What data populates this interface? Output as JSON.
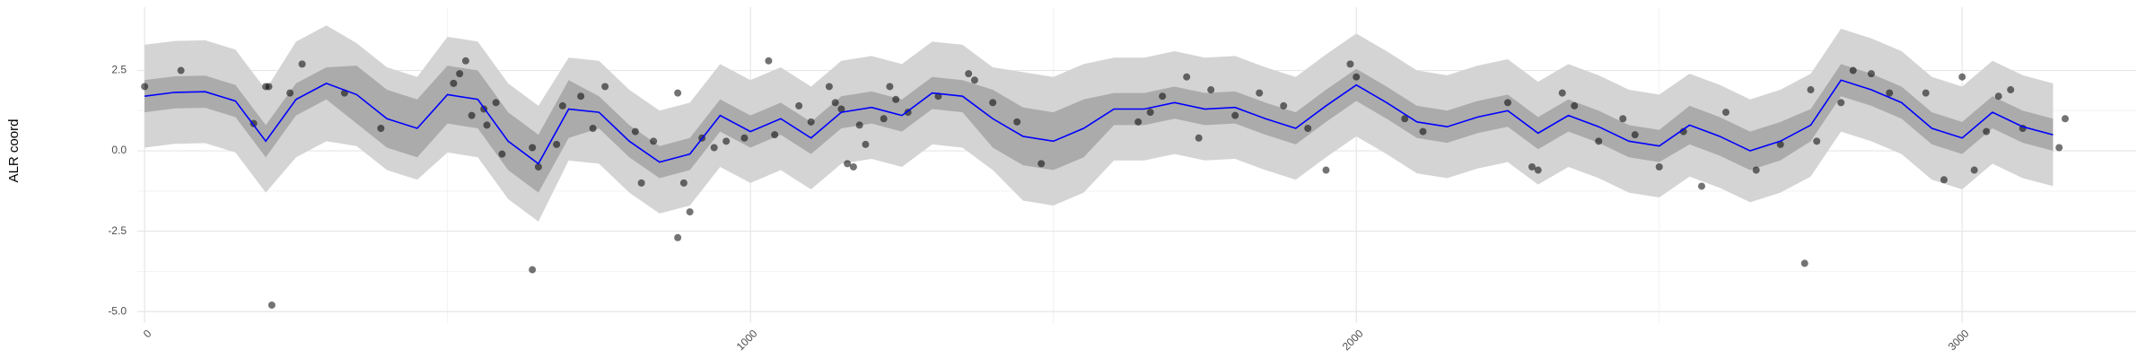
{
  "chart_data": {
    "type": "line",
    "y_label": "ALR coord",
    "xlim": [
      -12,
      3287
    ],
    "ylim": [
      -5.36,
      4.47
    ],
    "xticks": [
      0,
      1000,
      2000,
      3000
    ],
    "yticks": [
      {
        "value": -5,
        "label": "-5.0"
      },
      -2.5,
      {
        "value": 0,
        "label": "0.0"
      },
      2.5
    ],
    "grid": true,
    "x": [
      0,
      50,
      100,
      150,
      200,
      250,
      300,
      350,
      400,
      450,
      500,
      550,
      600,
      650,
      700,
      750,
      800,
      850,
      900,
      950,
      1000,
      1050,
      1100,
      1150,
      1200,
      1250,
      1300,
      1350,
      1400,
      1450,
      1500,
      1550,
      1600,
      1650,
      1700,
      1750,
      1800,
      1850,
      1900,
      1950,
      2000,
      2050,
      2100,
      2150,
      2200,
      2250,
      2300,
      2350,
      2400,
      2450,
      2500,
      2550,
      2600,
      2650,
      2700,
      2750,
      2800,
      2850,
      2900,
      2950,
      3000,
      3050,
      3100,
      3150
    ],
    "series": [
      {
        "color": "#0000ff",
        "values": [
          1.7,
          1.82,
          1.84,
          1.55,
          0.3,
          1.6,
          2.1,
          1.75,
          1.0,
          0.7,
          1.75,
          1.6,
          0.3,
          -0.4,
          1.3,
          1.2,
          0.3,
          -0.35,
          -0.1,
          1.1,
          0.6,
          1.0,
          0.4,
          1.2,
          1.35,
          1.1,
          1.8,
          1.7,
          1.0,
          0.45,
          0.3,
          0.7,
          1.3,
          1.3,
          1.5,
          1.3,
          1.35,
          1.0,
          0.7,
          1.4,
          2.05,
          1.5,
          0.9,
          0.75,
          1.05,
          1.25,
          0.55,
          1.1,
          0.75,
          0.3,
          0.15,
          0.8,
          0.45,
          0.0,
          0.3,
          0.8,
          2.2,
          1.9,
          1.5,
          0.7,
          0.4,
          1.2,
          0.75,
          0.5
        ]
      }
    ],
    "bands": [
      {
        "color": "#d4d4d4",
        "lower": [
          0.1,
          0.22,
          0.24,
          -0.05,
          -1.3,
          -0.2,
          0.3,
          0.15,
          -0.6,
          -0.9,
          -0.05,
          -0.2,
          -1.5,
          -2.2,
          -0.3,
          -0.4,
          -1.3,
          -1.95,
          -1.7,
          -0.5,
          -1.0,
          -0.6,
          -1.2,
          -0.4,
          -0.25,
          -0.5,
          0.2,
          0.1,
          -0.6,
          -1.55,
          -1.7,
          -1.3,
          -0.3,
          -0.3,
          -0.1,
          -0.3,
          -0.25,
          -0.6,
          -0.9,
          -0.2,
          0.45,
          -0.1,
          -0.7,
          -0.85,
          -0.55,
          -0.35,
          -1.05,
          -0.5,
          -0.85,
          -1.3,
          -1.45,
          -0.8,
          -1.15,
          -1.6,
          -1.3,
          -0.8,
          0.6,
          0.3,
          -0.1,
          -0.9,
          -1.2,
          -0.4,
          -0.85,
          -1.1
        ],
        "upper": [
          3.3,
          3.42,
          3.44,
          3.15,
          1.9,
          3.4,
          3.9,
          3.35,
          2.6,
          2.3,
          3.55,
          3.4,
          2.1,
          1.4,
          2.9,
          2.8,
          1.9,
          1.25,
          1.5,
          2.7,
          2.2,
          2.6,
          2.0,
          2.8,
          2.95,
          2.7,
          3.4,
          3.3,
          2.6,
          2.45,
          2.3,
          2.7,
          2.9,
          2.9,
          3.1,
          2.9,
          2.95,
          2.6,
          2.3,
          3.0,
          3.65,
          3.1,
          2.5,
          2.35,
          2.65,
          2.85,
          2.15,
          2.7,
          2.35,
          1.9,
          1.75,
          2.4,
          2.05,
          1.6,
          1.9,
          2.4,
          3.8,
          3.5,
          3.1,
          2.3,
          2.0,
          2.8,
          2.35,
          2.1
        ]
      },
      {
        "color": "#ababab",
        "lower": [
          1.2,
          1.32,
          1.34,
          1.05,
          -0.2,
          1.1,
          1.6,
          0.85,
          0.1,
          -0.2,
          0.85,
          0.7,
          -0.6,
          -1.3,
          0.4,
          0.7,
          -0.2,
          -0.85,
          -0.6,
          0.6,
          0.1,
          0.5,
          -0.1,
          0.7,
          0.85,
          0.6,
          1.3,
          1.2,
          0.1,
          -0.45,
          -0.6,
          -0.2,
          0.8,
          0.8,
          1.0,
          0.8,
          0.85,
          0.5,
          0.2,
          0.9,
          1.55,
          1.0,
          0.4,
          0.25,
          0.55,
          0.75,
          0.05,
          0.6,
          0.25,
          -0.2,
          -0.35,
          0.2,
          -0.15,
          -0.6,
          -0.3,
          0.3,
          1.7,
          1.4,
          1.0,
          0.2,
          -0.1,
          0.7,
          0.25,
          0.0
        ],
        "upper": [
          2.2,
          2.32,
          2.34,
          2.05,
          0.8,
          2.1,
          2.6,
          2.65,
          1.9,
          1.6,
          2.65,
          2.5,
          1.2,
          0.5,
          2.2,
          1.7,
          0.8,
          0.15,
          0.4,
          1.6,
          1.1,
          1.5,
          0.9,
          1.7,
          1.85,
          1.6,
          2.3,
          2.2,
          1.9,
          1.35,
          1.2,
          1.6,
          1.8,
          1.8,
          2.0,
          1.8,
          1.85,
          1.5,
          1.2,
          1.9,
          2.55,
          2.0,
          1.4,
          1.25,
          1.55,
          1.75,
          1.05,
          1.6,
          1.25,
          0.8,
          0.65,
          1.4,
          1.05,
          0.6,
          0.9,
          1.3,
          2.7,
          2.4,
          2.0,
          1.2,
          0.9,
          1.7,
          1.25,
          1.0
        ]
      }
    ],
    "points": {
      "color": "#000000",
      "x": [
        0,
        60,
        200,
        205,
        180,
        210,
        240,
        260,
        330,
        390,
        510,
        520,
        530,
        540,
        560,
        580,
        590,
        565,
        640,
        650,
        640,
        680,
        690,
        720,
        740,
        760,
        810,
        820,
        840,
        880,
        880,
        890,
        900,
        920,
        940,
        960,
        990,
        1030,
        1040,
        1080,
        1100,
        1130,
        1140,
        1150,
        1160,
        1170,
        1180,
        1190,
        1220,
        1230,
        1240,
        1260,
        1310,
        1360,
        1370,
        1400,
        1440,
        1480,
        1640,
        1660,
        1680,
        1720,
        1740,
        1760,
        1800,
        1840,
        1880,
        1920,
        1950,
        1990,
        2000,
        2080,
        2110,
        2250,
        2290,
        2300,
        2340,
        2360,
        2400,
        2440,
        2460,
        2500,
        2540,
        2570,
        2610,
        2660,
        2700,
        2740,
        2750,
        2760,
        2800,
        2820,
        2850,
        2880,
        2940,
        2970,
        3000,
        3020,
        3040,
        3060,
        3080,
        3100,
        3160,
        3170
      ],
      "y": [
        2.0,
        2.5,
        2.0,
        2.0,
        0.85,
        -4.8,
        1.8,
        2.7,
        1.8,
        0.7,
        2.1,
        2.4,
        2.8,
        1.1,
        1.3,
        1.5,
        -0.1,
        0.8,
        0.1,
        -0.5,
        -3.7,
        0.2,
        1.4,
        1.7,
        0.7,
        2.0,
        0.6,
        -1.0,
        0.3,
        1.8,
        -2.7,
        -1.0,
        -1.9,
        0.4,
        0.1,
        0.3,
        0.4,
        2.8,
        0.5,
        1.4,
        0.9,
        2.0,
        1.5,
        1.3,
        -0.4,
        -0.5,
        0.8,
        0.2,
        1.0,
        2.0,
        1.6,
        1.2,
        1.7,
        2.4,
        2.2,
        1.5,
        0.9,
        -0.4,
        0.9,
        1.2,
        1.7,
        2.3,
        0.4,
        1.9,
        1.1,
        1.8,
        1.4,
        0.7,
        -0.6,
        2.7,
        2.3,
        1.0,
        0.6,
        1.5,
        -0.5,
        -0.6,
        1.8,
        1.4,
        0.3,
        1.0,
        0.5,
        -0.5,
        0.6,
        -1.1,
        1.2,
        -0.6,
        0.2,
        -3.5,
        1.9,
        0.3,
        1.5,
        2.5,
        2.4,
        1.8,
        1.8,
        -0.9,
        2.3,
        -0.6,
        0.6,
        1.7,
        1.9,
        0.7,
        0.1,
        1.0
      ]
    }
  }
}
